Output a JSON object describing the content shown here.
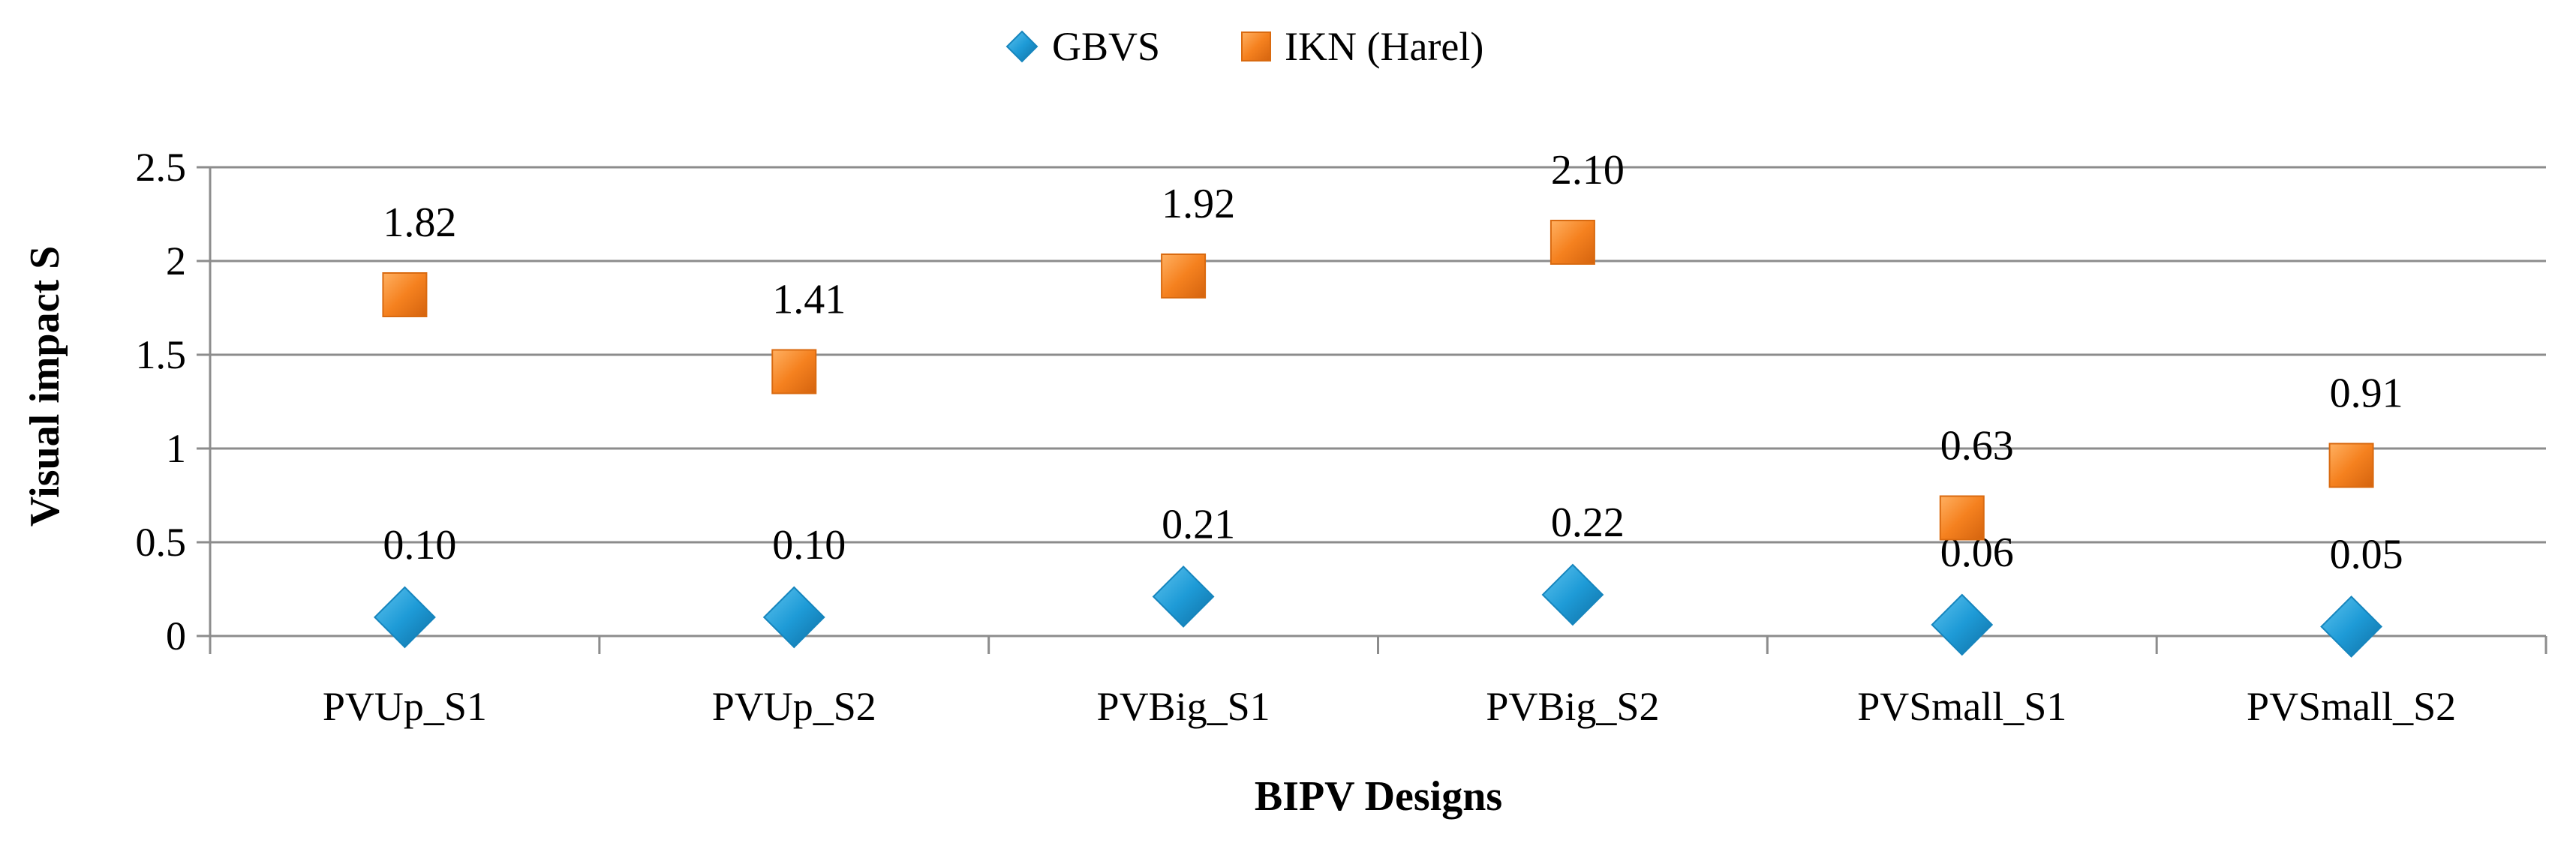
{
  "chart_data": {
    "type": "scatter",
    "title": "",
    "xlabel": "BIPV Designs",
    "ylabel": "Visual impact S",
    "categories": [
      "PVUp_S1",
      "PVUp_S2",
      "PVBig_S1",
      "PVBig_S2",
      "PVSmall_S1",
      "PVSmall_S2"
    ],
    "ylim": [
      0,
      2.5
    ],
    "yticks": [
      "0",
      "0.5",
      "1",
      "1.5",
      "2",
      "2.5"
    ],
    "grid": true,
    "legend_position": "top",
    "series": [
      {
        "name": "GBVS",
        "marker": "diamond",
        "color": "#1E9BD7",
        "values": [
          0.1,
          0.1,
          0.21,
          0.22,
          0.06,
          0.05
        ],
        "labels": [
          "0.10",
          "0.10",
          "0.21",
          "0.22",
          "0.06",
          "0.05"
        ]
      },
      {
        "name": "IKN (Harel)",
        "marker": "square",
        "color": "#F5811F",
        "values": [
          1.82,
          1.41,
          1.92,
          2.1,
          0.63,
          0.91
        ],
        "labels": [
          "1.82",
          "1.41",
          "1.92",
          "2.10",
          "0.63",
          "0.91"
        ]
      }
    ]
  }
}
